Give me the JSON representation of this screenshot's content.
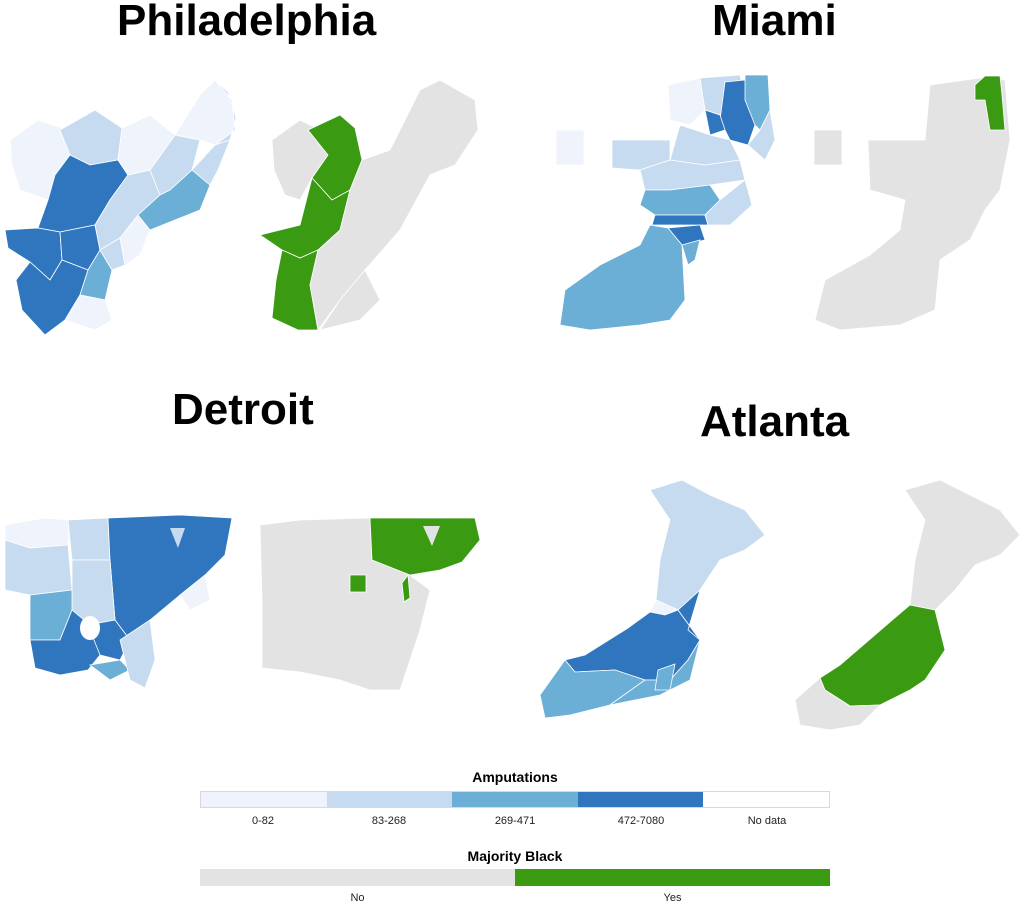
{
  "cities": [
    {
      "name": "Philadelphia"
    },
    {
      "name": "Miami"
    },
    {
      "name": "Detroit"
    },
    {
      "name": "Atlanta"
    }
  ],
  "colors": {
    "amp_0_82": "#eff3fb",
    "amp_83_268": "#c6dbef",
    "amp_269_471": "#6baed6",
    "amp_472_7080": "#2f76bf",
    "no_data": "#ffffff",
    "majority_no": "#e3e3e3",
    "majority_yes": "#3a9a12",
    "border": "#ffffff"
  },
  "legend": {
    "amputations_title": "Amputations",
    "amputations_items": [
      "0-82",
      "83-268",
      "269-471",
      "472-7080",
      "No data"
    ],
    "majority_title": "Majority Black",
    "majority_items": [
      "No",
      "Yes"
    ]
  }
}
